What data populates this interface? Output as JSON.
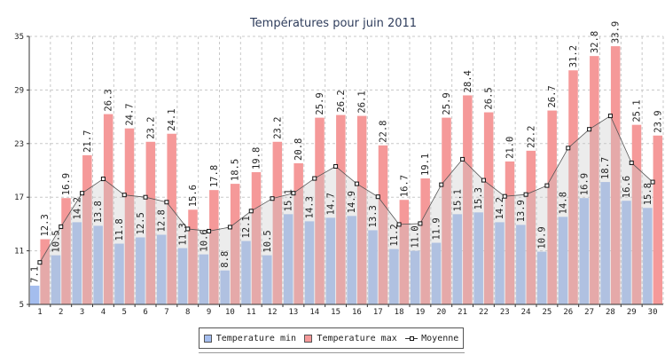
{
  "chart_data": {
    "type": "bar",
    "title": "Températures pour juin 2011",
    "categories": [
      "1",
      "2",
      "3",
      "4",
      "5",
      "6",
      "7",
      "8",
      "9",
      "10",
      "11",
      "12",
      "13",
      "14",
      "15",
      "16",
      "17",
      "18",
      "19",
      "20",
      "21",
      "22",
      "23",
      "24",
      "25",
      "26",
      "27",
      "28",
      "29",
      "30"
    ],
    "y_ticks": [
      "5",
      "11",
      "17",
      "23",
      "29",
      "35"
    ],
    "ylim": [
      5,
      35
    ],
    "grid": true,
    "legend_position": "bottom-center",
    "series": [
      {
        "name": "Temperature min",
        "kind": "bar",
        "color": "#a4bdee",
        "values": [
          7.1,
          10.5,
          14.2,
          13.8,
          11.8,
          12.5,
          12.8,
          11.3,
          10.6,
          8.8,
          12.1,
          10.5,
          15.1,
          14.3,
          14.7,
          14.9,
          13.3,
          11.2,
          11.0,
          11.9,
          15.1,
          15.3,
          14.2,
          13.9,
          10.9,
          14.8,
          16.9,
          18.7,
          16.6,
          15.8
        ]
      },
      {
        "name": "Temperature max",
        "kind": "bar",
        "color": "#f59999",
        "values": [
          12.3,
          16.9,
          21.7,
          26.3,
          24.7,
          23.2,
          24.1,
          15.6,
          17.8,
          18.5,
          19.8,
          23.2,
          20.8,
          25.9,
          26.2,
          26.1,
          22.8,
          16.7,
          19.1,
          25.9,
          28.4,
          26.5,
          21.0,
          22.2,
          26.7,
          31.2,
          32.8,
          33.9,
          25.1,
          23.9
        ]
      },
      {
        "name": "Moyenne",
        "kind": "line",
        "color": "#333333",
        "values": [
          9.7,
          13.7,
          17.45,
          19.05,
          17.25,
          17.0,
          16.45,
          13.45,
          13.2,
          13.65,
          15.45,
          16.85,
          17.45,
          19.1,
          20.45,
          18.5,
          17.05,
          13.95,
          14.05,
          18.4,
          21.25,
          18.9,
          17.1,
          17.3,
          18.3,
          22.5,
          24.6,
          26.1,
          20.85,
          18.7
        ]
      }
    ]
  }
}
